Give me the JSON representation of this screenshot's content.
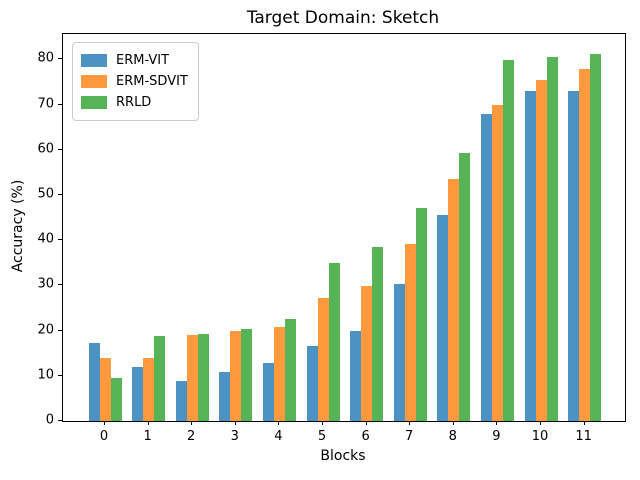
{
  "chart_data": {
    "type": "bar",
    "title": "Target Domain: Sketch",
    "xlabel": "Blocks",
    "ylabel": "Accuracy (%)",
    "categories": [
      "0",
      "1",
      "2",
      "3",
      "4",
      "5",
      "6",
      "7",
      "8",
      "9",
      "10",
      "11"
    ],
    "series": [
      {
        "name": "ERM-VIT",
        "color": "#4C92C3",
        "values": [
          17.3,
          12.0,
          8.9,
          10.9,
          12.8,
          16.7,
          20.0,
          30.2,
          45.6,
          67.8,
          73.1,
          73.1
        ]
      },
      {
        "name": "ERM-SDVIT",
        "color": "#FF993E",
        "values": [
          13.9,
          14.0,
          19.0,
          19.8,
          20.8,
          27.1,
          29.9,
          39.1,
          53.6,
          70.0,
          75.4,
          77.8
        ]
      },
      {
        "name": "RRLD",
        "color": "#56B356",
        "values": [
          9.6,
          18.7,
          19.2,
          20.4,
          22.5,
          35.0,
          38.6,
          47.1,
          59.2,
          79.8,
          80.6,
          81.1
        ]
      }
    ],
    "yticks": [
      0,
      10,
      20,
      30,
      40,
      50,
      60,
      70,
      80
    ],
    "ylim": [
      0,
      85.6
    ],
    "legend_position": "upper left",
    "grid": false,
    "spine_color": "#000000"
  }
}
